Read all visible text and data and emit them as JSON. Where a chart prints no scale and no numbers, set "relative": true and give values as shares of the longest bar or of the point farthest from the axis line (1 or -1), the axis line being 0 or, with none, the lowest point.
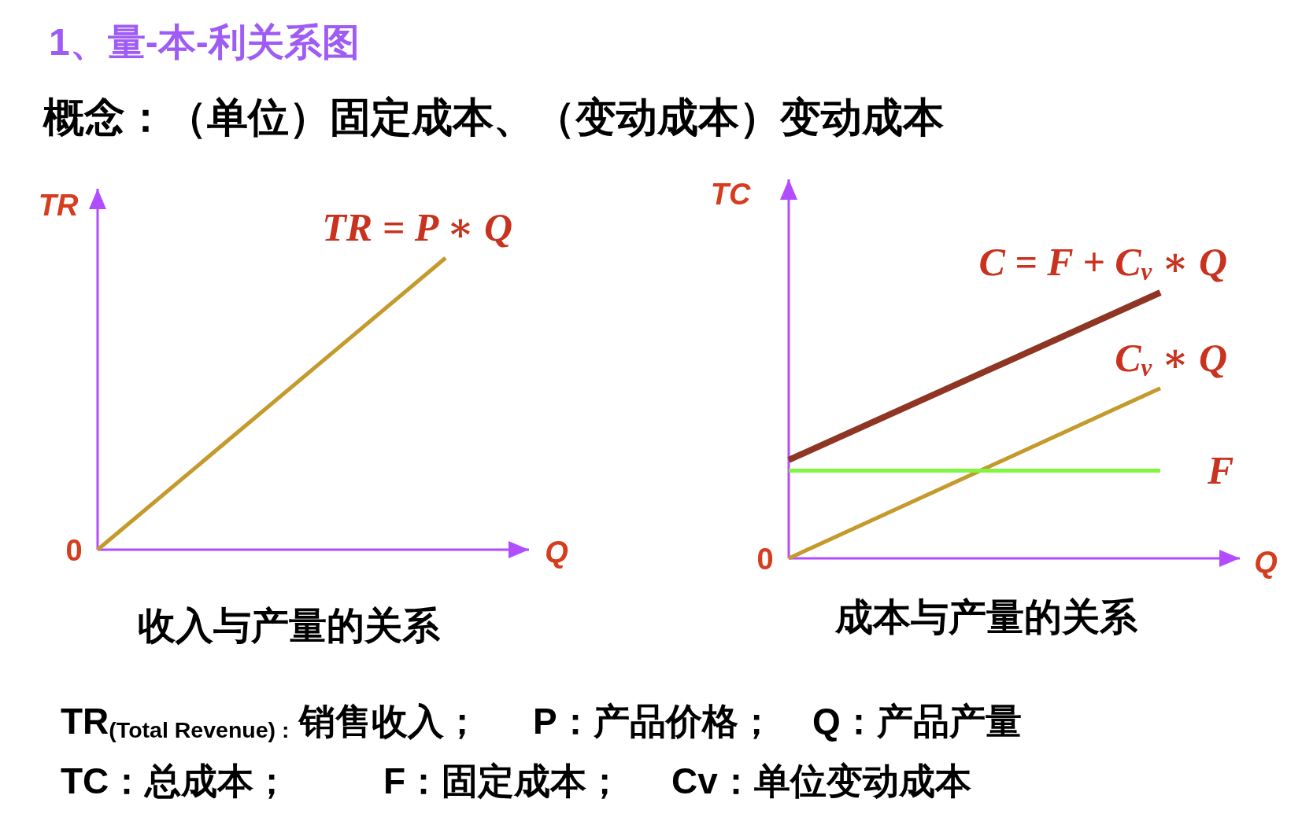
{
  "chart_data": [
    {
      "type": "other",
      "title": "1、量-本-利关系图",
      "subtitle": "概念：（单位）固定成本、（变动成本）变动成本"
    },
    {
      "type": "line",
      "title": "收入与产量的关系",
      "xlabel": "Q",
      "ylabel": "TR",
      "relative": true,
      "categories": [
        null,
        null
      ],
      "series": [
        {
          "name": "TR = P ∗ Q",
          "color": "#c49a2c",
          "values": [
            0,
            1
          ]
        }
      ],
      "annotations": [
        "0"
      ]
    },
    {
      "type": "line",
      "title": "成本与产量的关系",
      "xlabel": "Q",
      "ylabel": "TC",
      "relative": true,
      "categories": [
        null,
        null
      ],
      "series": [
        {
          "name": "C = F + C$_{v}$ ∗ Q",
          "color": "#8e3524",
          "values": [
            0.37,
            1
          ]
        },
        {
          "name": "C$_{v}$ ∗ Q",
          "color": "#c49a2c",
          "values": [
            0,
            0.64
          ]
        },
        {
          "name": "F",
          "color": "#80f542",
          "values": [
            0.33,
            0.33
          ]
        }
      ],
      "annotations": [
        "0"
      ]
    },
    {
      "type": "other",
      "annotations": [
        "TR$_{(Total Revenue) :}$ 销售收入；",
        "P：产品价格；",
        "Q：产品产量",
        "TC：总成本；",
        "F：固定成本；",
        "Cv：单位变动成本"
      ]
    }
  ]
}
